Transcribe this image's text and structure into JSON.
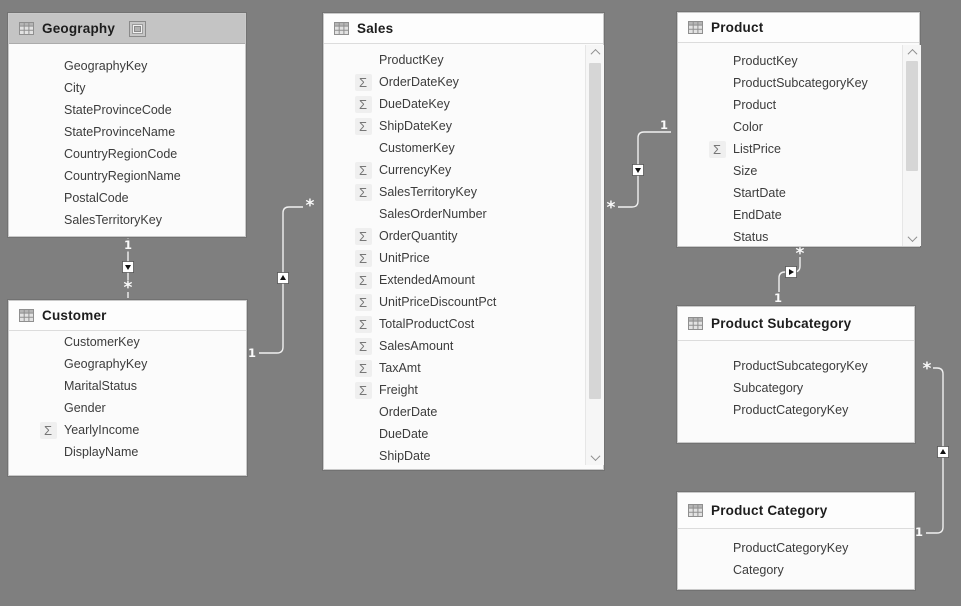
{
  "app": {
    "view_name": "Data model diagram"
  },
  "colors": {
    "background": "#7f7f7f",
    "table_background": "#fbfbfb",
    "selected_header_background": "#c4c4c4",
    "connector_line": "#f0f0f0",
    "field_text": "#3c3c3c",
    "title_text": "#1d1d1d"
  },
  "icons": {
    "table_icon": "table-grid-icon",
    "maximize_icon": "maximize-icon",
    "sum_label": "Σ"
  },
  "tables": [
    {
      "title": "Geography",
      "selected": true,
      "has_maximize_button": true,
      "scrollable": false,
      "fields": [
        {
          "name": "GeographyKey",
          "sum": false
        },
        {
          "name": "City",
          "sum": false
        },
        {
          "name": "StateProvinceCode",
          "sum": false
        },
        {
          "name": "StateProvinceName",
          "sum": false
        },
        {
          "name": "CountryRegionCode",
          "sum": false
        },
        {
          "name": "CountryRegionName",
          "sum": false
        },
        {
          "name": "PostalCode",
          "sum": false
        },
        {
          "name": "SalesTerritoryKey",
          "sum": false
        }
      ]
    },
    {
      "title": "Customer",
      "selected": false,
      "has_maximize_button": false,
      "scrollable": false,
      "fields": [
        {
          "name": "CustomerKey",
          "sum": false
        },
        {
          "name": "GeographyKey",
          "sum": false
        },
        {
          "name": "MaritalStatus",
          "sum": false
        },
        {
          "name": "Gender",
          "sum": false
        },
        {
          "name": "YearlyIncome",
          "sum": true
        },
        {
          "name": "DisplayName",
          "sum": false
        }
      ]
    },
    {
      "title": "Sales",
      "selected": false,
      "has_maximize_button": false,
      "scrollable": true,
      "fields": [
        {
          "name": "ProductKey",
          "sum": false
        },
        {
          "name": "OrderDateKey",
          "sum": true
        },
        {
          "name": "DueDateKey",
          "sum": true
        },
        {
          "name": "ShipDateKey",
          "sum": true
        },
        {
          "name": "CustomerKey",
          "sum": false
        },
        {
          "name": "CurrencyKey",
          "sum": true
        },
        {
          "name": "SalesTerritoryKey",
          "sum": true
        },
        {
          "name": "SalesOrderNumber",
          "sum": false
        },
        {
          "name": "OrderQuantity",
          "sum": true
        },
        {
          "name": "UnitPrice",
          "sum": true
        },
        {
          "name": "ExtendedAmount",
          "sum": true
        },
        {
          "name": "UnitPriceDiscountPct",
          "sum": true
        },
        {
          "name": "TotalProductCost",
          "sum": true
        },
        {
          "name": "SalesAmount",
          "sum": true
        },
        {
          "name": "TaxAmt",
          "sum": true
        },
        {
          "name": "Freight",
          "sum": true
        },
        {
          "name": "OrderDate",
          "sum": false
        },
        {
          "name": "DueDate",
          "sum": false
        },
        {
          "name": "ShipDate",
          "sum": false
        }
      ]
    },
    {
      "title": "Product",
      "selected": false,
      "has_maximize_button": false,
      "scrollable": true,
      "fields": [
        {
          "name": "ProductKey",
          "sum": false
        },
        {
          "name": "ProductSubcategoryKey",
          "sum": false
        },
        {
          "name": "Product",
          "sum": false
        },
        {
          "name": "Color",
          "sum": false
        },
        {
          "name": "ListPrice",
          "sum": true
        },
        {
          "name": "Size",
          "sum": false
        },
        {
          "name": "StartDate",
          "sum": false
        },
        {
          "name": "EndDate",
          "sum": false
        },
        {
          "name": "Status",
          "sum": false
        }
      ]
    },
    {
      "title": "Product Subcategory",
      "selected": false,
      "has_maximize_button": false,
      "scrollable": false,
      "fields": [
        {
          "name": "ProductSubcategoryKey",
          "sum": false
        },
        {
          "name": "Subcategory",
          "sum": false
        },
        {
          "name": "ProductCategoryKey",
          "sum": false
        }
      ]
    },
    {
      "title": "Product Category",
      "selected": false,
      "has_maximize_button": false,
      "scrollable": false,
      "fields": [
        {
          "name": "ProductCategoryKey",
          "sum": false
        },
        {
          "name": "Category",
          "sum": false
        }
      ]
    }
  ],
  "relationships": [
    {
      "one_table": "Geography",
      "many_table": "Customer",
      "one_label": "1",
      "many_label": "*"
    },
    {
      "one_table": "Customer",
      "many_table": "Sales",
      "one_label": "1",
      "many_label": "*"
    },
    {
      "one_table": "Product",
      "many_table": "Sales",
      "one_label": "1",
      "many_label": "*"
    },
    {
      "one_table": "Product Subcategory",
      "many_table": "Product",
      "one_label": "1",
      "many_label": "*"
    },
    {
      "one_table": "Product Category",
      "many_table": "Product Subcategory",
      "one_label": "1",
      "many_label": "*"
    }
  ]
}
